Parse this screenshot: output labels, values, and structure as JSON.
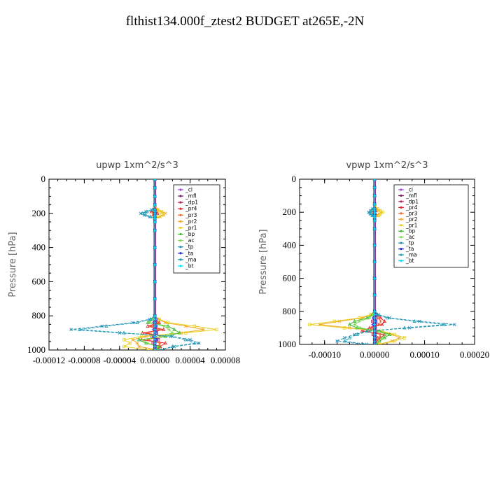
{
  "page": {
    "title": "flthist134.000f_ztest2  BUDGET at265E,-2N"
  },
  "legend_entries": [
    "_cl",
    "_mfl",
    "_dp1",
    "_pr4",
    "_pr3",
    "_pr2",
    "_pr1",
    "_bp",
    "_ac",
    "_tp",
    "_ta",
    "_ma",
    "_bt"
  ],
  "series_colors": {
    "_cl": "#9b4dca",
    "_mfl": "#7f1f6f",
    "_dp1": "#b0245c",
    "_pr4": "#e8262b",
    "_pr3": "#f06a3a",
    "_pr2": "#f5a623",
    "_pr1": "#e8d11a",
    "_bp": "#3dbb2e",
    "_ac": "#7ed957",
    "_tp": "#2a8fb8",
    "_ta": "#2233cc",
    "_ma": "#1f9fb2",
    "_bt": "#00e5ff"
  },
  "chart_data": [
    {
      "type": "line",
      "title": "upwp   1xm^2/s^3",
      "ylabel": "Pressure [hPa]",
      "ylim": [
        1000,
        0
      ],
      "xlim": [
        -0.00012,
        8e-05
      ],
      "yticks": [
        0,
        200,
        400,
        600,
        800,
        1000
      ],
      "xticks": [
        -0.00012,
        -8e-05,
        -4e-05,
        0.0,
        4e-05,
        8e-05
      ],
      "ytick_labels": [
        "0",
        "200",
        "400",
        "600",
        "800",
        "1000"
      ],
      "xtick_labels": [
        "-0.00012",
        "-0.00008",
        "-0.00004",
        "0.00000",
        "0.00004",
        "0.00008"
      ],
      "legend_position": "top-right",
      "levels": [
        0,
        50,
        100,
        150,
        180,
        190,
        200,
        210,
        220,
        230,
        250,
        300,
        400,
        500,
        600,
        700,
        800,
        820,
        840,
        860,
        880,
        900,
        920,
        940,
        960,
        980,
        1000
      ],
      "series": [
        {
          "name": "_cl",
          "values": [
            0,
            0,
            0,
            0,
            0,
            0,
            0,
            0,
            0,
            0,
            0,
            0,
            0,
            0,
            0,
            0,
            0,
            1e-06,
            -2e-06,
            2e-06,
            -2e-06,
            1e-06,
            1e-06,
            2e-06,
            -1e-06,
            2e-06,
            1e-06
          ]
        },
        {
          "name": "_mfl",
          "values": [
            0,
            0,
            0,
            0,
            0,
            0,
            0,
            0,
            0,
            0,
            0,
            0,
            0,
            0,
            0,
            0,
            0,
            0,
            0,
            0,
            0,
            0,
            0,
            0,
            0,
            0,
            0
          ]
        },
        {
          "name": "_dp1",
          "values": [
            0,
            0,
            0,
            0,
            0,
            0,
            0,
            0,
            0,
            0,
            0,
            0,
            0,
            0,
            0,
            0,
            0,
            1e-06,
            2e-06,
            -2e-06,
            3e-06,
            2e-06,
            -3e-06,
            4e-06,
            -2e-06,
            3e-06,
            0
          ]
        },
        {
          "name": "_pr4",
          "values": [
            0,
            0,
            0,
            0,
            2e-06,
            -4e-06,
            3e-06,
            -2e-06,
            1e-06,
            0,
            0,
            0,
            0,
            0,
            0,
            0,
            0,
            -2e-06,
            5e-06,
            -8e-06,
            1e-05,
            -1.4e-05,
            1.2e-05,
            -1.5e-05,
            1.2e-05,
            6e-06,
            3e-06
          ]
        },
        {
          "name": "_pr3",
          "values": [
            0,
            0,
            0,
            0,
            0,
            2e-06,
            -2e-06,
            0,
            0,
            0,
            0,
            0,
            0,
            0,
            0,
            0,
            0,
            -1e-06,
            4e-06,
            -5e-06,
            6e-06,
            -8e-06,
            7e-06,
            -8e-06,
            6e-06,
            3e-06,
            1e-06
          ]
        },
        {
          "name": "_pr2",
          "values": [
            0,
            0,
            0,
            0,
            4e-06,
            8e-06,
            1.2e-05,
            1e-05,
            6e-06,
            0,
            0,
            0,
            0,
            0,
            0,
            0,
            0,
            4e-06,
            1.2e-05,
            3.5e-05,
            5.5e-05,
            3e-05,
            -1e-05,
            -2.5e-05,
            -2e-05,
            -1.8e-05,
            5e-06
          ]
        },
        {
          "name": "_pr1",
          "values": [
            0,
            0,
            0,
            0,
            3e-06,
            6e-06,
            1e-05,
            8e-06,
            4e-06,
            0,
            0,
            0,
            0,
            0,
            0,
            0,
            0,
            5e-06,
            1.5e-05,
            4.5e-05,
            7e-05,
            3.5e-05,
            -1.5e-05,
            -3.5e-05,
            -2.8e-05,
            -3.5e-05,
            -5e-06
          ]
        },
        {
          "name": "_bp",
          "values": [
            0,
            0,
            0,
            0,
            0,
            0,
            0,
            0,
            0,
            0,
            0,
            0,
            0,
            0,
            0,
            0,
            0,
            -3e-06,
            -8e-06,
            1.5e-05,
            2.2e-05,
            2.8e-05,
            1.2e-05,
            -1.8e-05,
            -1e-05,
            5e-06,
            2e-06
          ]
        },
        {
          "name": "_ac",
          "values": [
            0,
            0,
            0,
            0,
            0,
            0,
            0,
            0,
            0,
            0,
            0,
            0,
            0,
            0,
            0,
            0,
            0,
            -2e-06,
            -6e-06,
            1e-05,
            1.6e-05,
            2e-05,
            8e-06,
            -1.4e-05,
            -8e-06,
            3e-06,
            1e-06
          ]
        },
        {
          "name": "_tp",
          "values": [
            0,
            0,
            0,
            0,
            -4e-06,
            -1e-05,
            -1.6e-05,
            -1.2e-05,
            -6e-06,
            0,
            0,
            0,
            0,
            0,
            0,
            0,
            0,
            -6e-06,
            -2.5e-05,
            -6e-05,
            -9.5e-05,
            -4e-05,
            2e-05,
            4e-05,
            5e-05,
            2.2e-05,
            6e-06
          ]
        },
        {
          "name": "_ta",
          "values": [
            0,
            0,
            0,
            0,
            0,
            0,
            0,
            0,
            0,
            0,
            0,
            0,
            0,
            0,
            0,
            0,
            0,
            1e-06,
            0,
            1e-06,
            0,
            1e-06,
            -1e-06,
            1e-06,
            0,
            0,
            0
          ]
        },
        {
          "name": "_ma",
          "values": [
            0,
            0,
            0,
            0,
            -3e-06,
            -9e-06,
            -1.4e-05,
            -1e-05,
            -5e-06,
            0,
            0,
            0,
            0,
            0,
            0,
            0,
            0,
            -5e-06,
            -2e-05,
            -5.5e-05,
            -8.5e-05,
            -3.5e-05,
            1.8e-05,
            3.5e-05,
            4.5e-05,
            2e-05,
            5e-06
          ]
        },
        {
          "name": "_bt",
          "values": [
            0,
            0,
            0,
            0,
            0,
            0,
            0,
            0,
            0,
            0,
            0,
            0,
            0,
            0,
            0,
            0,
            0,
            0,
            0,
            0,
            0,
            0,
            0,
            0,
            0,
            0,
            0
          ]
        }
      ]
    },
    {
      "type": "line",
      "title": "vpwp   1xm^2/s^3",
      "ylabel": "Pressure [hPa]",
      "ylim": [
        1000,
        0
      ],
      "xlim": [
        -0.00015,
        0.0002
      ],
      "yticks": [
        0,
        200,
        400,
        600,
        800,
        1000
      ],
      "xticks": [
        -0.0001,
        0.0,
        0.0001,
        0.0002
      ],
      "ytick_labels": [
        "0",
        "200",
        "400",
        "600",
        "800",
        "1000"
      ],
      "xtick_labels": [
        "-0.00010",
        "0.00000",
        "0.00010",
        "0.00020"
      ],
      "legend_position": "top-right",
      "levels": [
        0,
        50,
        100,
        150,
        180,
        190,
        200,
        210,
        220,
        230,
        250,
        300,
        400,
        500,
        600,
        700,
        800,
        820,
        840,
        860,
        880,
        900,
        920,
        940,
        960,
        980,
        1000
      ],
      "series": [
        {
          "name": "_cl",
          "values": [
            0,
            0,
            0,
            0,
            0,
            0,
            0,
            0,
            0,
            0,
            0,
            0,
            0,
            0,
            0,
            0,
            0,
            2e-06,
            -3e-06,
            3e-06,
            -4e-06,
            2e-06,
            3e-06,
            -2e-06,
            3e-06,
            2e-06,
            0
          ]
        },
        {
          "name": "_mfl",
          "values": [
            0,
            0,
            0,
            0,
            0,
            0,
            0,
            0,
            0,
            0,
            0,
            0,
            0,
            0,
            0,
            0,
            0,
            0,
            0,
            0,
            0,
            0,
            0,
            0,
            0,
            0,
            0
          ]
        },
        {
          "name": "_dp1",
          "values": [
            0,
            0,
            0,
            0,
            0,
            0,
            0,
            0,
            0,
            0,
            0,
            0,
            0,
            0,
            0,
            0,
            0,
            2e-06,
            4e-06,
            -4e-06,
            5e-06,
            -4e-06,
            4e-06,
            -3e-06,
            4e-06,
            2e-06,
            0
          ]
        },
        {
          "name": "_pr4",
          "values": [
            0,
            0,
            0,
            0,
            0,
            3e-06,
            -3e-06,
            2e-06,
            0,
            0,
            0,
            0,
            0,
            0,
            0,
            0,
            0,
            5e-06,
            1.2e-05,
            2e-05,
            1.5e-05,
            -1e-05,
            -2.5e-05,
            2e-05,
            1.2e-05,
            5e-06,
            2e-06
          ]
        },
        {
          "name": "_pr3",
          "values": [
            0,
            0,
            0,
            0,
            0,
            2e-06,
            -2e-06,
            0,
            0,
            0,
            0,
            0,
            0,
            0,
            0,
            0,
            0,
            3e-06,
            8e-06,
            1.2e-05,
            1e-05,
            -6e-06,
            -1.5e-05,
            1.2e-05,
            8e-06,
            3e-06,
            1e-06
          ]
        },
        {
          "name": "_pr2",
          "values": [
            0,
            0,
            0,
            0,
            4e-06,
            8e-06,
            1.2e-05,
            9e-06,
            5e-06,
            0,
            0,
            0,
            0,
            0,
            0,
            0,
            0,
            -6e-06,
            -2.5e-05,
            -7e-05,
            -0.00011,
            -5e-05,
            1e-05,
            3.5e-05,
            5e-05,
            3.5e-05,
            8e-06
          ]
        },
        {
          "name": "_pr1",
          "values": [
            0,
            0,
            0,
            0,
            6e-06,
            1.2e-05,
            1.6e-05,
            1.2e-05,
            8e-06,
            0,
            0,
            0,
            0,
            0,
            0,
            0,
            0,
            -8e-06,
            -3e-05,
            -8e-05,
            -0.00013,
            -6e-05,
            1.5e-05,
            4e-05,
            6e-05,
            4e-05,
            1e-05
          ]
        },
        {
          "name": "_bp",
          "values": [
            0,
            0,
            0,
            0,
            0,
            0,
            0,
            0,
            0,
            0,
            0,
            0,
            0,
            0,
            0,
            0,
            0,
            -4e-06,
            -1.5e-05,
            -4e-05,
            -5e-05,
            -3.5e-05,
            1e-05,
            3e-05,
            2e-05,
            1e-05,
            3e-06
          ]
        },
        {
          "name": "_ac",
          "values": [
            0,
            0,
            0,
            0,
            0,
            0,
            0,
            0,
            0,
            0,
            0,
            0,
            0,
            0,
            0,
            0,
            0,
            -3e-06,
            -1e-05,
            -3e-05,
            -4e-05,
            -2.8e-05,
            8e-06,
            2.2e-05,
            1.5e-05,
            8e-06,
            2e-06
          ]
        },
        {
          "name": "_tp",
          "values": [
            0,
            0,
            0,
            0,
            -4e-06,
            -8e-06,
            -1.2e-05,
            -9e-06,
            -5e-06,
            0,
            0,
            0,
            0,
            0,
            0,
            0,
            0,
            8e-06,
            3e-05,
            9e-05,
            0.00016,
            7e-05,
            -1.5e-05,
            -4e-05,
            -6e-05,
            -7.5e-05,
            -2e-05
          ]
        },
        {
          "name": "_ta",
          "values": [
            0,
            0,
            0,
            0,
            0,
            0,
            0,
            0,
            0,
            0,
            0,
            0,
            0,
            0,
            0,
            0,
            0,
            2e-06,
            -1e-06,
            2e-06,
            -1e-06,
            1e-06,
            0,
            1e-06,
            0,
            0,
            0
          ]
        },
        {
          "name": "_ma",
          "values": [
            0,
            0,
            0,
            0,
            -3e-06,
            -7e-06,
            -1e-05,
            -7e-06,
            -4e-06,
            0,
            0,
            0,
            0,
            0,
            0,
            0,
            0,
            6e-06,
            2.5e-05,
            8e-05,
            0.00014,
            6e-05,
            -1.2e-05,
            -3.5e-05,
            -5e-05,
            -6e-05,
            -1.5e-05
          ]
        },
        {
          "name": "_bt",
          "values": [
            0,
            0,
            0,
            0,
            0,
            0,
            0,
            0,
            0,
            0,
            0,
            0,
            0,
            0,
            0,
            0,
            0,
            0,
            0,
            0,
            0,
            0,
            0,
            0,
            0,
            0,
            0
          ]
        }
      ]
    }
  ]
}
